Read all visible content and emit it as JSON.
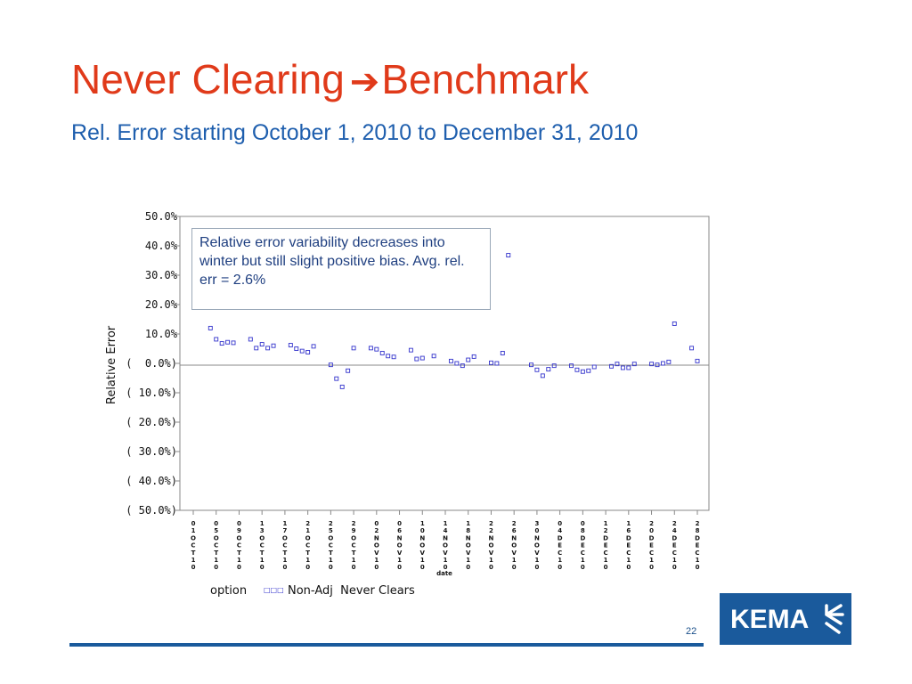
{
  "slide": {
    "title_part1": "Never Clearing",
    "title_arrow": "➔",
    "title_part2": "Benchmark",
    "subtitle": "Rel. Error starting October 1, 2010 to December 31, 2010",
    "annotation": "Relative error variability decreases into winter but still slight positive bias.   Avg. rel. err = 2.6%",
    "page_number": "22",
    "logo_text": "KEMA",
    "logo_icon": "kema-mark-icon",
    "colors": {
      "title": "#e03a1a",
      "subtitle": "#1f5fae",
      "accent": "#1a5a9c",
      "marker": "#3333cc"
    }
  },
  "chart_data": {
    "type": "scatter",
    "xlabel": "date",
    "ylabel": "Relative Error",
    "ylim": [
      -50,
      50
    ],
    "xlim": [
      "2010-10-01",
      "2010-12-28"
    ],
    "y_tick_labels": [
      "50.0%",
      "40.0%",
      "30.0%",
      "20.0%",
      "10.0%",
      "(  0.0%)",
      "( 10.0%)",
      "( 20.0%)",
      "( 30.0%)",
      "( 40.0%)",
      "( 50.0%)"
    ],
    "x_tick_labels": [
      "01OCT10",
      "05OCT10",
      "09OCT10",
      "13OCT10",
      "17OCT10",
      "21OCT10",
      "25OCT10",
      "29OCT10",
      "02NOV10",
      "06NOV10",
      "10NOV10",
      "14NOV10",
      "18NOV10",
      "22NOV10",
      "26NOV10",
      "30NOV10",
      "04DEC10",
      "08DEC10",
      "12DEC10",
      "16DEC10",
      "20DEC10",
      "24DEC10",
      "28DEC10"
    ],
    "legend": {
      "title": "option",
      "series_label": "Non-Adj  Never Clears",
      "marker": "□□□"
    },
    "reference_line": 0,
    "grid": false,
    "series": [
      {
        "name": "Non-Adj  Never Clears",
        "marker": "open-square",
        "points": [
          [
            "2010-10-04",
            12.0
          ],
          [
            "2010-10-05",
            8.2
          ],
          [
            "2010-10-06",
            6.8
          ],
          [
            "2010-10-07",
            7.2
          ],
          [
            "2010-10-08",
            7.0
          ],
          [
            "2010-10-11",
            8.2
          ],
          [
            "2010-10-12",
            5.2
          ],
          [
            "2010-10-13",
            6.5
          ],
          [
            "2010-10-14",
            5.2
          ],
          [
            "2010-10-15",
            6.0
          ],
          [
            "2010-10-18",
            6.2
          ],
          [
            "2010-10-19",
            5.0
          ],
          [
            "2010-10-20",
            4.2
          ],
          [
            "2010-10-21",
            3.8
          ],
          [
            "2010-10-22",
            5.8
          ],
          [
            "2010-10-25",
            -0.5
          ],
          [
            "2010-10-26",
            -5.2
          ],
          [
            "2010-10-27",
            -8.0
          ],
          [
            "2010-10-28",
            -2.5
          ],
          [
            "2010-10-29",
            5.2
          ],
          [
            "2010-11-01",
            5.2
          ],
          [
            "2010-11-02",
            4.8
          ],
          [
            "2010-11-03",
            3.5
          ],
          [
            "2010-11-04",
            2.5
          ],
          [
            "2010-11-05",
            2.2
          ],
          [
            "2010-11-08",
            4.5
          ],
          [
            "2010-11-09",
            1.5
          ],
          [
            "2010-11-10",
            1.8
          ],
          [
            "2010-11-12",
            2.5
          ],
          [
            "2010-11-15",
            0.8
          ],
          [
            "2010-11-16",
            0.0
          ],
          [
            "2010-11-17",
            -0.8
          ],
          [
            "2010-11-18",
            1.2
          ],
          [
            "2010-11-19",
            2.3
          ],
          [
            "2010-11-22",
            0.2
          ],
          [
            "2010-11-23",
            0.0
          ],
          [
            "2010-11-24",
            3.5
          ],
          [
            "2010-11-25",
            36.8
          ],
          [
            "2010-11-29",
            -0.5
          ],
          [
            "2010-11-30",
            -2.2
          ],
          [
            "2010-12-01",
            -4.2
          ],
          [
            "2010-12-02",
            -2.0
          ],
          [
            "2010-12-03",
            -0.8
          ],
          [
            "2010-12-06",
            -0.8
          ],
          [
            "2010-12-07",
            -2.2
          ],
          [
            "2010-12-08",
            -2.8
          ],
          [
            "2010-12-09",
            -2.5
          ],
          [
            "2010-12-10",
            -1.2
          ],
          [
            "2010-12-13",
            -1.0
          ],
          [
            "2010-12-14",
            -0.2
          ],
          [
            "2010-12-15",
            -1.5
          ],
          [
            "2010-12-16",
            -1.5
          ],
          [
            "2010-12-17",
            -0.2
          ],
          [
            "2010-12-20",
            -0.2
          ],
          [
            "2010-12-21",
            -0.5
          ],
          [
            "2010-12-22",
            0.0
          ],
          [
            "2010-12-23",
            0.5
          ],
          [
            "2010-12-24",
            13.5
          ],
          [
            "2010-12-27",
            5.2
          ],
          [
            "2010-12-28",
            0.8
          ]
        ]
      }
    ]
  }
}
